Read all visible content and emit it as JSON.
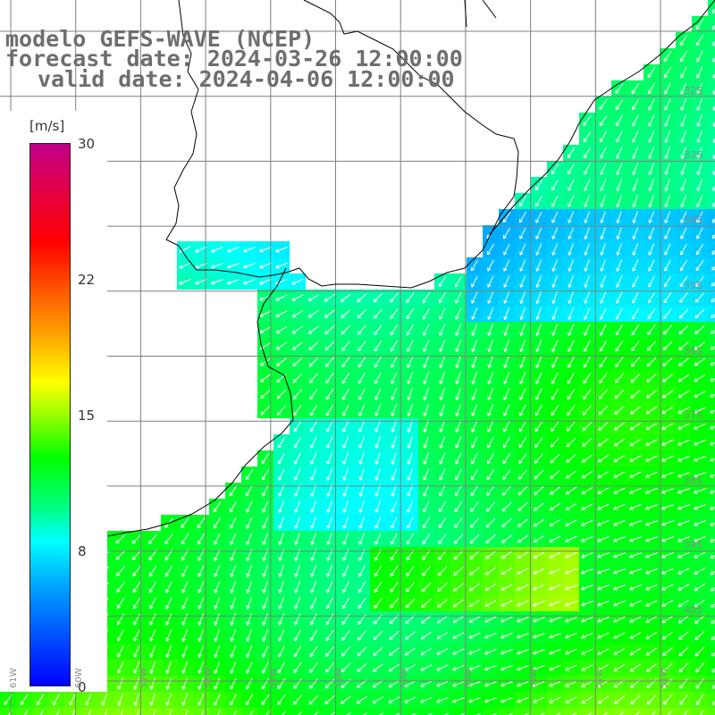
{
  "title": {
    "line1": "modelo GEFS-WAVE (NCEP)",
    "line2": "forecast date: 2024-03-26 12:00:00",
    "line3": "valid date: 2024-04-06 12:00:00"
  },
  "colorbar": {
    "unit": "[m/s]",
    "ticks": [
      "30",
      "22",
      "15",
      "8",
      "0"
    ],
    "tick_values": [
      30,
      22,
      15,
      8,
      0
    ],
    "colors": [
      "#0000ff",
      "#00a0ff",
      "#00ffff",
      "#00ff80",
      "#00ff00",
      "#9aff00",
      "#ffff00",
      "#ffa000",
      "#ff6000",
      "#ff0000",
      "#e0004a",
      "#c00088"
    ]
  },
  "lat_labels": [
    "32S",
    "33S",
    "34S",
    "35S",
    "36S",
    "37S",
    "38S",
    "39S",
    "40S"
  ],
  "lon_labels": [
    "61W",
    "60W",
    "59W",
    "58W",
    "57W",
    "56W",
    "55W",
    "54W",
    "53W",
    "52W",
    "51W"
  ],
  "colors": {
    "grid": "#7f7f7f",
    "coast": "#000000",
    "arrow": "#ffffff",
    "title": "#6e6e6e"
  }
}
